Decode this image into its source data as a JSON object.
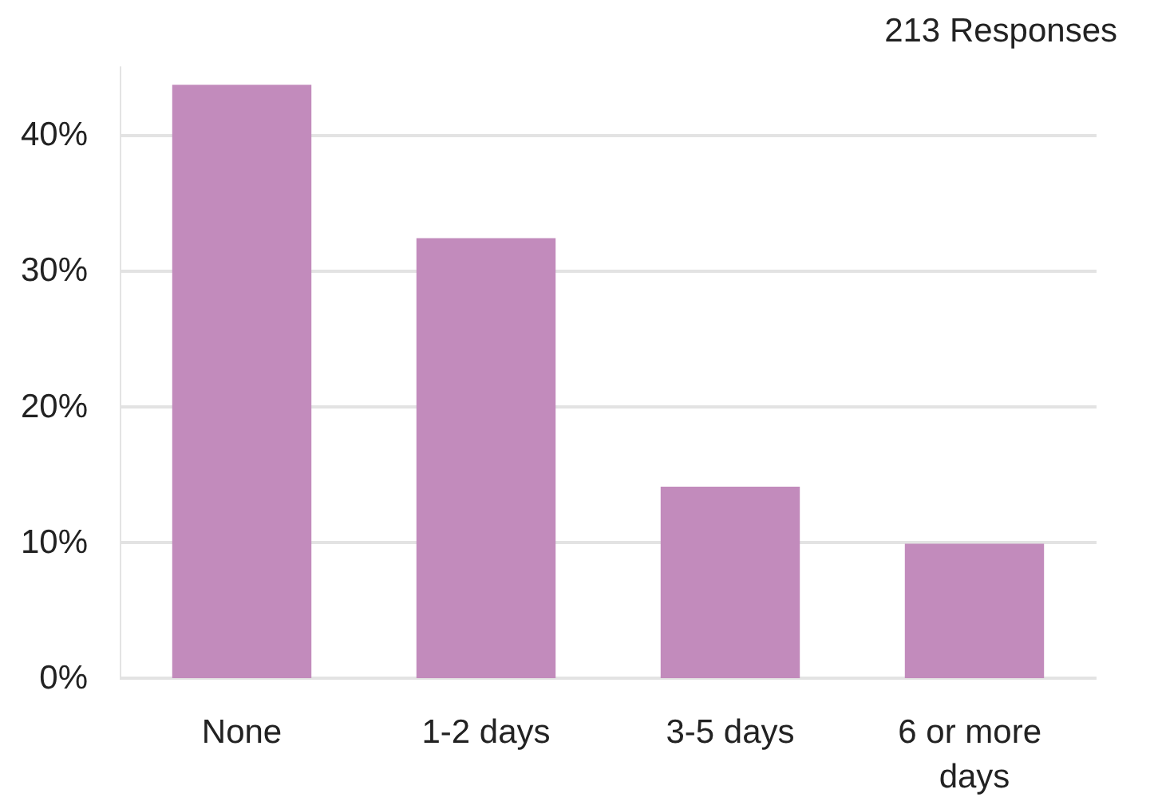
{
  "chart_data": {
    "type": "bar",
    "subtitle": "213 Responses",
    "categories": [
      "None",
      "1-2 days",
      "3-5 days",
      "6 or more days"
    ],
    "values": [
      43.7,
      32.4,
      14.1,
      9.9
    ],
    "color": "#c28bbc",
    "ylim": [
      0,
      45
    ],
    "yticks": [
      {
        "value": 0,
        "label": "0%"
      },
      {
        "value": 10,
        "label": "10%"
      },
      {
        "value": 20,
        "label": "20%"
      },
      {
        "value": 30,
        "label": "30%"
      },
      {
        "value": 40,
        "label": "40%"
      }
    ],
    "grid": "y"
  }
}
